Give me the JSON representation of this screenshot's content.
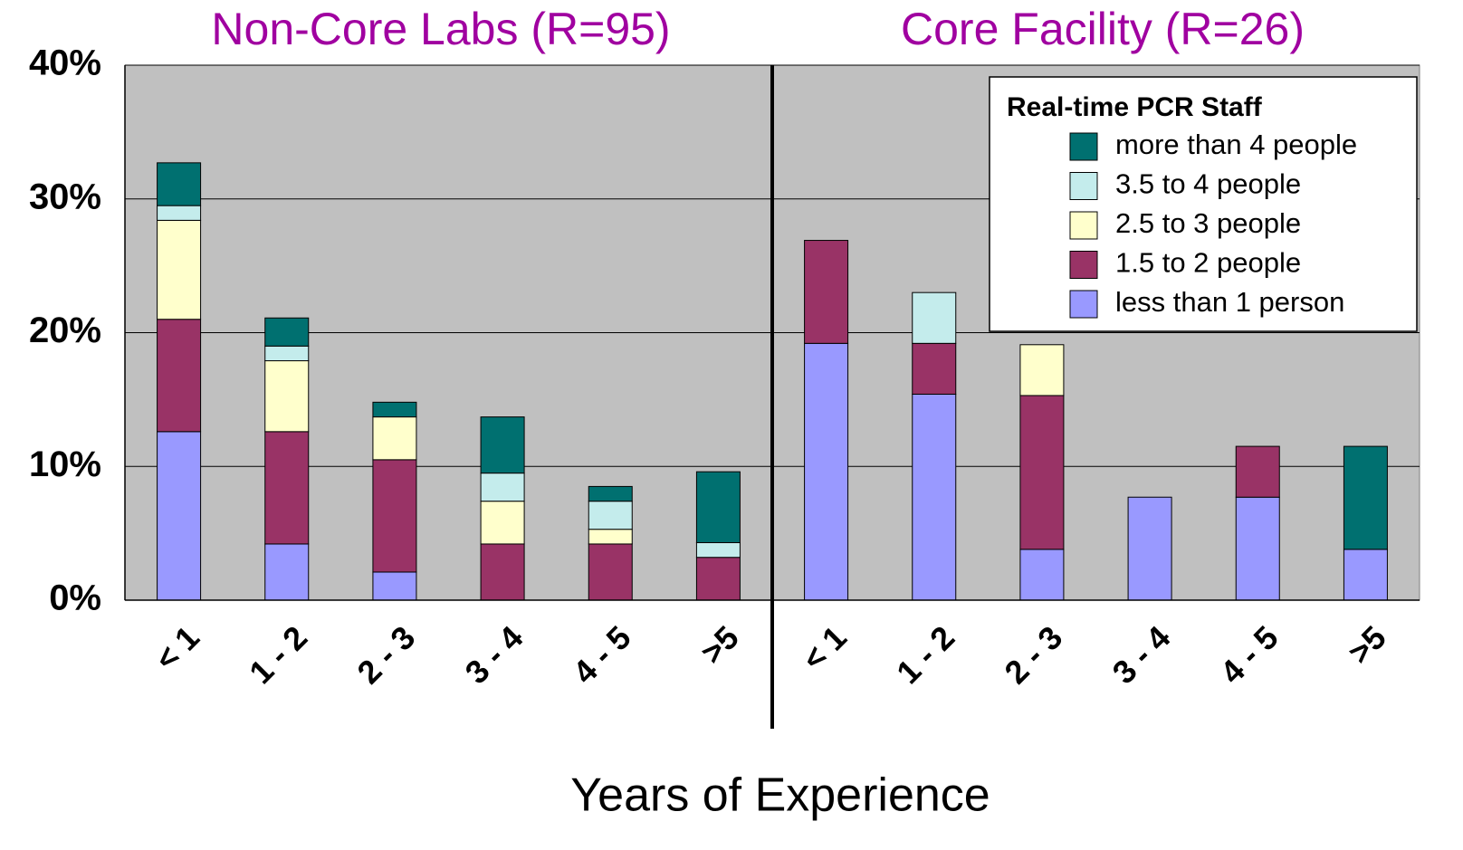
{
  "chart_data": {
    "type": "stacked_bar",
    "group_labels": [
      "Non-Core Labs (R=95)",
      "Core Facility (R=26)"
    ],
    "x_label": "Years of Experience",
    "legend_title": "Real-time PCR Staff",
    "categories": [
      "< 1",
      "1 - 2",
      "2 - 3",
      "3 - 4",
      "4 - 5",
      ">5",
      "< 1",
      "1 - 2",
      "2 - 3",
      "3 - 4",
      "4 - 5",
      ">5"
    ],
    "series": [
      {
        "name": "less than 1 person",
        "color": "#9999ff",
        "values": [
          12.6,
          4.2,
          2.1,
          0,
          0,
          0,
          19.2,
          15.4,
          3.8,
          7.7,
          7.7,
          3.8
        ]
      },
      {
        "name": "1.5 to 2 people",
        "color": "#993366",
        "values": [
          8.4,
          8.4,
          8.4,
          4.2,
          4.2,
          3.2,
          7.7,
          3.8,
          11.5,
          0,
          3.8,
          0
        ]
      },
      {
        "name": "2.5 to 3 people",
        "color": "#ffffcc",
        "values": [
          7.4,
          5.3,
          3.2,
          3.2,
          1.1,
          0,
          0,
          0,
          3.8,
          0,
          0,
          0
        ]
      },
      {
        "name": "3.5 to 4 people",
        "color": "#c4ecec",
        "values": [
          1.1,
          1.1,
          0,
          2.1,
          2.1,
          1.1,
          0,
          3.8,
          0,
          0,
          0,
          0
        ]
      },
      {
        "name": "more than 4 people",
        "color": "#007070",
        "values": [
          3.2,
          2.1,
          1.1,
          4.2,
          1.1,
          5.3,
          0,
          0,
          0,
          0,
          0,
          7.7
        ]
      }
    ],
    "ylim": [
      0,
      40
    ],
    "yticks": [
      {
        "value": 0,
        "label": "0%"
      },
      {
        "value": 10,
        "label": "10%"
      },
      {
        "value": 20,
        "label": "20%"
      },
      {
        "value": 30,
        "label": "30%"
      },
      {
        "value": 40,
        "label": "40%"
      }
    ],
    "grid": true
  }
}
